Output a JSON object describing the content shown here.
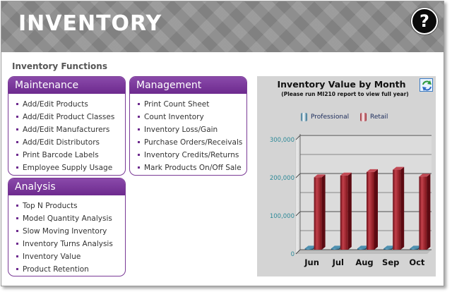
{
  "header": {
    "title": "INVENTORY",
    "help_label": "?"
  },
  "section_title": "Inventory Functions",
  "maintenance": {
    "title": "Maintenance",
    "items": [
      "Add/Edit Products",
      "Add/Edit Product Classes",
      "Add/Edit Manufacturers",
      "Add/Edit Distributors",
      "Print Barcode Labels",
      "Employee Supply Usage"
    ]
  },
  "management": {
    "title": "Management",
    "items": [
      "Print Count Sheet",
      "Count Inventory",
      "Inventory Loss/Gain",
      "Purchase Orders/Receivals",
      "Inventory Credits/Returns",
      "Mark Products On/Off Sale"
    ]
  },
  "analysis": {
    "title": "Analysis",
    "items": [
      "Top N Products",
      "Model Quantity Analysis",
      "Slow Moving Inventory",
      "Inventory Turns Analysis",
      "Inventory Value",
      "Product Retention"
    ]
  },
  "chart_panel": {
    "refresh_icon": "refresh-icon",
    "colors": {
      "professional": "#2a6a8a",
      "retail": "#9a1b25",
      "background": "#d4d4d4"
    }
  },
  "chart_data": {
    "type": "bar",
    "title": "Inventory Value by Month",
    "subtitle": "(Please run MI210 report to view full year)",
    "categories": [
      "Jun",
      "Jul",
      "Aug",
      "Sep",
      "Oct"
    ],
    "series": [
      {
        "name": "Professional",
        "values": [
          3000,
          3000,
          3000,
          3000,
          3000
        ]
      },
      {
        "name": "Retail",
        "values": [
          190000,
          195000,
          204000,
          210000,
          192000
        ]
      }
    ],
    "yticks": [
      "0",
      "100,000",
      "200,000",
      "300,000"
    ],
    "ylim": [
      0,
      300000
    ],
    "legend": "top",
    "grid": true
  }
}
